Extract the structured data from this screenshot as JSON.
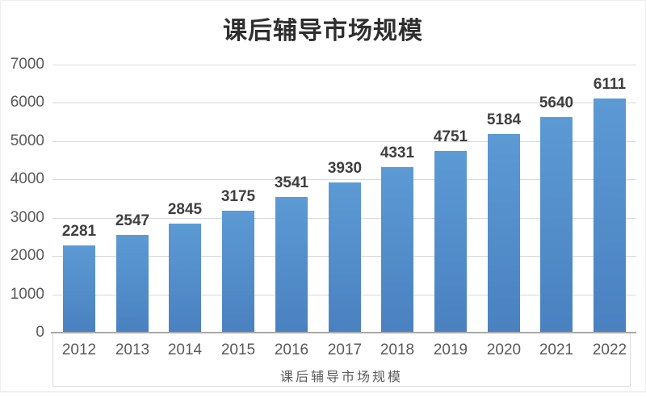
{
  "chart_data": {
    "type": "bar",
    "title": "课后辅导市场规模",
    "xlabel": "课后辅导市场规模",
    "ylabel": "",
    "categories": [
      "2012",
      "2013",
      "2014",
      "2015",
      "2016",
      "2017",
      "2018",
      "2019",
      "2020",
      "2021",
      "2022"
    ],
    "values": [
      2281,
      2547,
      2845,
      3175,
      3541,
      3930,
      4331,
      4751,
      5184,
      5640,
      6111
    ],
    "ylim": [
      0,
      7000
    ],
    "yticks": [
      0,
      1000,
      2000,
      3000,
      4000,
      5000,
      6000,
      7000
    ],
    "grid": true,
    "legend": false,
    "data_labels": true,
    "colors": {
      "bar_top": "#5C9AD4",
      "bar_bottom": "#4A81C0",
      "gridline": "#D9D9D9",
      "axis_line": "#A9A9A9",
      "title": "#2E2E2E",
      "value_label": "#3F3F3F",
      "tick_label": "#595959",
      "axis_title": "#595959",
      "axis_box_border": "#DCDCDC"
    }
  }
}
